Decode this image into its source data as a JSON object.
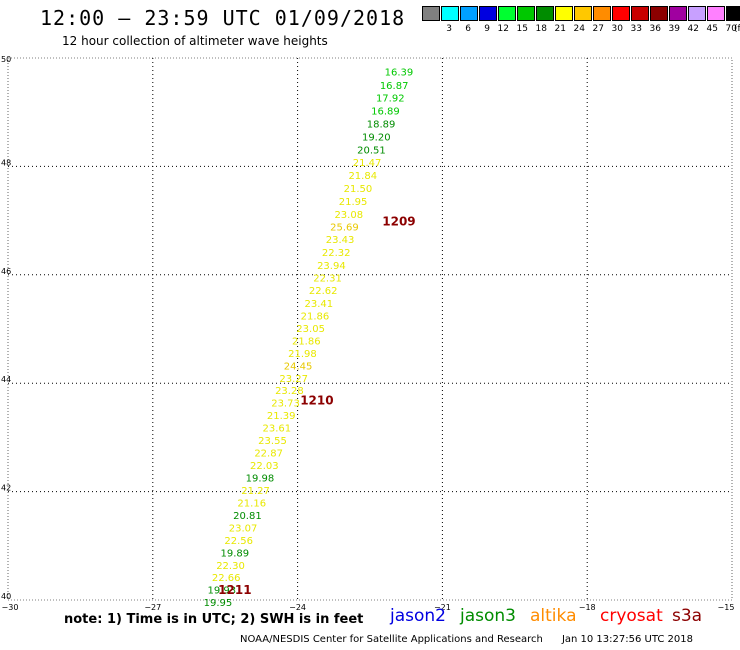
{
  "header": {
    "title": "12:00 – 23:59 UTC 01/09/2018",
    "subtitle": "12 hour collection of altimeter wave heights"
  },
  "legend": {
    "unit": "(ft)",
    "items": [
      {
        "label": "3",
        "color": "#808080"
      },
      {
        "label": "6",
        "color": "#00ffff"
      },
      {
        "label": "9",
        "color": "#00a0ff"
      },
      {
        "label": "12",
        "color": "#0000e0"
      },
      {
        "label": "15",
        "color": "#00ff30"
      },
      {
        "label": "18",
        "color": "#00c800"
      },
      {
        "label": "21",
        "color": "#008c00"
      },
      {
        "label": "24",
        "color": "#ffff00"
      },
      {
        "label": "27",
        "color": "#ffc800"
      },
      {
        "label": "30",
        "color": "#ff8c00"
      },
      {
        "label": "33",
        "color": "#ff0000"
      },
      {
        "label": "36",
        "color": "#c80000"
      },
      {
        "label": "39",
        "color": "#8c0000"
      },
      {
        "label": "42",
        "color": "#a000a0"
      },
      {
        "label": "45",
        "color": "#c8a0ff"
      },
      {
        "label": "70",
        "color": "#ff80ff"
      },
      {
        "label": "",
        "color": "#000000"
      }
    ]
  },
  "map": {
    "lon_range": [
      -30,
      -15
    ],
    "lat_range": [
      40,
      50
    ],
    "lon_ticks": [
      "−30",
      "−27",
      "−24",
      "−21",
      "−18",
      "−15"
    ],
    "lat_ticks": [
      "40",
      "42",
      "44",
      "46",
      "48",
      "50"
    ],
    "grid": "dotted",
    "tracks": [
      {
        "label": "1209",
        "lon": -21.9,
        "lat": 47.0
      },
      {
        "label": "1210",
        "lon": -23.6,
        "lat": 43.7
      },
      {
        "label": "1211",
        "lon": -25.3,
        "lat": 40.2
      }
    ],
    "observations": [
      {
        "value": "16.39",
        "color": "#00c800",
        "lon": -21.9,
        "lat": 49.75
      },
      {
        "value": "16.87",
        "color": "#00c800",
        "lon": -22.0,
        "lat": 49.5
      },
      {
        "value": "17.92",
        "color": "#00c800",
        "lon": -22.08,
        "lat": 49.27
      },
      {
        "value": "16.89",
        "color": "#00c800",
        "lon": -22.18,
        "lat": 49.03
      },
      {
        "value": "18.89",
        "color": "#008c00",
        "lon": -22.27,
        "lat": 48.79
      },
      {
        "value": "19.20",
        "color": "#008c00",
        "lon": -22.37,
        "lat": 48.55
      },
      {
        "value": "20.51",
        "color": "#008c00",
        "lon": -22.47,
        "lat": 48.31
      },
      {
        "value": "21.47",
        "color": "#e8e800",
        "lon": -22.56,
        "lat": 48.08
      },
      {
        "value": "21.84",
        "color": "#e8e800",
        "lon": -22.65,
        "lat": 47.84
      },
      {
        "value": "21.50",
        "color": "#e8e800",
        "lon": -22.75,
        "lat": 47.6
      },
      {
        "value": "21.95",
        "color": "#e8e800",
        "lon": -22.85,
        "lat": 47.36
      },
      {
        "value": "23.08",
        "color": "#e8e800",
        "lon": -22.94,
        "lat": 47.12
      },
      {
        "value": "25.69",
        "color": "#e8c800",
        "lon": -23.03,
        "lat": 46.89
      },
      {
        "value": "23.43",
        "color": "#e8e800",
        "lon": -23.12,
        "lat": 46.66
      },
      {
        "value": "22.32",
        "color": "#e8e800",
        "lon": -23.2,
        "lat": 46.42
      },
      {
        "value": "23.94",
        "color": "#e8e800",
        "lon": -23.3,
        "lat": 46.18
      },
      {
        "value": "22.31",
        "color": "#e8e800",
        "lon": -23.38,
        "lat": 45.95
      },
      {
        "value": "22.62",
        "color": "#e8e800",
        "lon": -23.47,
        "lat": 45.72
      },
      {
        "value": "23.41",
        "color": "#e8e800",
        "lon": -23.56,
        "lat": 45.48
      },
      {
        "value": "21.86",
        "color": "#e8e800",
        "lon": -23.64,
        "lat": 45.25
      },
      {
        "value": "23.05",
        "color": "#e8e800",
        "lon": -23.73,
        "lat": 45.02
      },
      {
        "value": "21.86",
        "color": "#e8e800",
        "lon": -23.82,
        "lat": 44.79
      },
      {
        "value": "21.98",
        "color": "#e8e800",
        "lon": -23.9,
        "lat": 44.56
      },
      {
        "value": "24.45",
        "color": "#e8c800",
        "lon": -23.99,
        "lat": 44.33
      },
      {
        "value": "23.27",
        "color": "#e8e800",
        "lon": -24.08,
        "lat": 44.1
      },
      {
        "value": "23.28",
        "color": "#e8e800",
        "lon": -24.17,
        "lat": 43.87
      },
      {
        "value": "23.73",
        "color": "#e8e800",
        "lon": -24.25,
        "lat": 43.64
      },
      {
        "value": "21.39",
        "color": "#e8e800",
        "lon": -24.34,
        "lat": 43.41
      },
      {
        "value": "23.61",
        "color": "#e8e800",
        "lon": -24.43,
        "lat": 43.18
      },
      {
        "value": "23.55",
        "color": "#e8e800",
        "lon": -24.52,
        "lat": 42.95
      },
      {
        "value": "22.87",
        "color": "#e8e800",
        "lon": -24.6,
        "lat": 42.72
      },
      {
        "value": "22.03",
        "color": "#e8e800",
        "lon": -24.69,
        "lat": 42.49
      },
      {
        "value": "19.98",
        "color": "#008c00",
        "lon": -24.78,
        "lat": 42.26
      },
      {
        "value": "21.27",
        "color": "#e8e800",
        "lon": -24.87,
        "lat": 42.03
      },
      {
        "value": "21.16",
        "color": "#e8e800",
        "lon": -24.95,
        "lat": 41.8
      },
      {
        "value": "20.81",
        "color": "#008c00",
        "lon": -25.04,
        "lat": 41.57
      },
      {
        "value": "23.07",
        "color": "#e8e800",
        "lon": -25.13,
        "lat": 41.34
      },
      {
        "value": "22.56",
        "color": "#e8e800",
        "lon": -25.22,
        "lat": 41.11
      },
      {
        "value": "19.89",
        "color": "#008c00",
        "lon": -25.3,
        "lat": 40.88
      },
      {
        "value": "22.30",
        "color": "#e8e800",
        "lon": -25.39,
        "lat": 40.65
      },
      {
        "value": "22.66",
        "color": "#e8e800",
        "lon": -25.48,
        "lat": 40.42
      },
      {
        "value": "19.93",
        "color": "#008c00",
        "lon": -25.57,
        "lat": 40.19
      },
      {
        "value": "19.95",
        "color": "#008c00",
        "lon": -25.65,
        "lat": 39.96
      }
    ]
  },
  "note": "note: 1) Time is in UTC; 2) SWH is in feet",
  "missions": [
    {
      "name": "jason2",
      "color": "#0000e0"
    },
    {
      "name": "jason3",
      "color": "#008c00"
    },
    {
      "name": "altika",
      "color": "#ff8c00"
    },
    {
      "name": "cryosat",
      "color": "#ff0000"
    },
    {
      "name": "s3a",
      "color": "#8c0000"
    }
  ],
  "footer": {
    "agency": "NOAA/NESDIS Center for Satellite Applications and Research",
    "timestamp": "Jan 10 13:27:56 UTC 2018"
  }
}
